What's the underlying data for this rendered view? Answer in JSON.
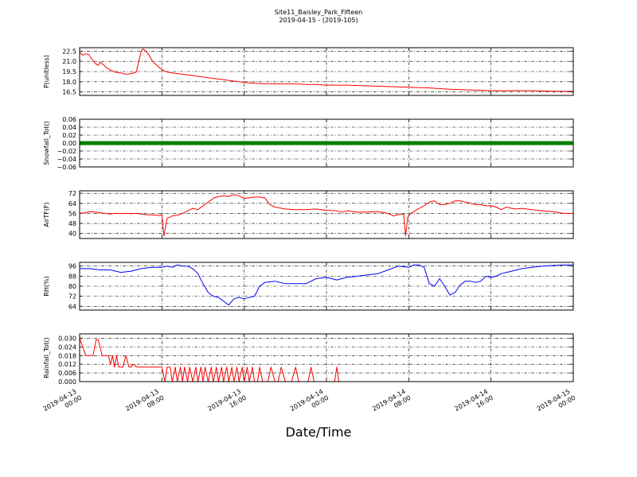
{
  "figure": {
    "title": "Site11_Baisley_Park_Fifteen",
    "subtitle": "2019-04-15 - (2019-105)",
    "xlabel": "Date/Time",
    "xticks": [
      {
        "h": 0,
        "l1": "2019-04-13",
        "l2": "00:00"
      },
      {
        "h": 8,
        "l1": "2019-04-13",
        "l2": "08:00"
      },
      {
        "h": 16,
        "l1": "2019-04-13",
        "l2": "16:00"
      },
      {
        "h": 24,
        "l1": "2019-04-14",
        "l2": "00:00"
      },
      {
        "h": 32,
        "l1": "2019-04-14",
        "l2": "08:00"
      },
      {
        "h": 40,
        "l1": "2019-04-14",
        "l2": "16:00"
      },
      {
        "h": 48,
        "l1": "2019-04-15",
        "l2": "00:00"
      }
    ]
  },
  "chart_data": [
    {
      "type": "line",
      "ylabel": "P(unitless)",
      "color": "#ff0000",
      "ylim": [
        16.0,
        23.0
      ],
      "yticks": [
        16.5,
        18.0,
        19.5,
        21.0,
        22.5
      ],
      "tick_labels": [
        "16.5",
        "18.0",
        "19.5",
        "21.0",
        "22.5"
      ],
      "x": [
        0,
        0.3,
        0.6,
        0.9,
        1.2,
        1.5,
        1.8,
        2.0,
        2.3,
        2.6,
        3.0,
        3.5,
        4.0,
        4.5,
        5.0,
        5.5,
        6.0,
        6.2,
        6.5,
        6.8,
        7.0,
        7.3,
        7.6,
        7.9,
        8.2,
        8.6,
        9.0,
        9.5,
        10,
        11,
        12,
        13,
        14,
        15,
        16,
        17,
        18,
        19,
        20,
        21,
        22,
        23,
        24,
        26,
        28,
        30,
        32,
        34,
        36,
        38,
        40,
        42,
        44,
        46,
        48
      ],
      "y": [
        22.3,
        21.9,
        22.1,
        22.0,
        21.3,
        20.7,
        20.4,
        20.9,
        20.5,
        20.1,
        19.7,
        19.4,
        19.3,
        19.1,
        19.2,
        19.4,
        22.6,
        22.8,
        22.4,
        21.8,
        21.2,
        20.7,
        20.3,
        19.9,
        19.6,
        19.4,
        19.3,
        19.2,
        19.1,
        18.9,
        18.7,
        18.5,
        18.3,
        18.1,
        17.9,
        17.8,
        17.7,
        17.7,
        17.7,
        17.7,
        17.6,
        17.6,
        17.5,
        17.5,
        17.4,
        17.3,
        17.2,
        17.1,
        16.9,
        16.8,
        16.7,
        16.7,
        16.7,
        16.6,
        16.6
      ]
    },
    {
      "type": "line",
      "ylabel": "Snowfall_Tot()",
      "color": "#008000",
      "ylim": [
        -0.06,
        0.06
      ],
      "yticks": [
        -0.06,
        -0.04,
        -0.02,
        0.0,
        0.02,
        0.04,
        0.06
      ],
      "tick_labels": [
        "−0.06",
        "−0.04",
        "−0.02",
        "0.00",
        "0.02",
        "0.04",
        "0.06"
      ],
      "x": [
        0,
        48
      ],
      "y": [
        0.0,
        0.0
      ]
    },
    {
      "type": "line",
      "ylabel": "AirTF(F)",
      "color": "#ff0000",
      "ylim": [
        36,
        74
      ],
      "yticks": [
        40,
        48,
        56,
        64,
        72
      ],
      "tick_labels": [
        "40",
        "48",
        "56",
        "64",
        "72"
      ],
      "x": [
        0,
        0.5,
        1,
        1.5,
        2,
        2.5,
        3,
        3.5,
        4,
        4.5,
        5,
        5.5,
        6,
        6.5,
        7,
        7.5,
        7.8,
        8.0,
        8.2,
        8.5,
        9,
        9.5,
        10,
        10.5,
        11,
        11.5,
        12,
        12.5,
        13,
        13.5,
        14,
        14.5,
        15,
        15.5,
        16,
        16.5,
        17,
        17.5,
        18,
        18.5,
        19,
        20,
        21,
        22,
        23,
        24,
        25,
        25.5,
        26,
        27,
        28,
        29,
        30,
        30.5,
        31,
        31.5,
        31.7,
        31.9,
        32.2,
        32.6,
        33,
        33.5,
        34,
        34.5,
        35,
        35.5,
        36,
        36.5,
        37,
        37.5,
        38,
        38.5,
        39,
        39.5,
        40,
        40.5,
        41,
        41.5,
        42,
        42.5,
        43,
        44,
        45,
        46,
        47,
        48
      ],
      "y": [
        56,
        56.5,
        57.5,
        57,
        56.5,
        56,
        55.5,
        56,
        55.8,
        56,
        55.7,
        56,
        55.5,
        55,
        54.8,
        54.5,
        54.3,
        55,
        38,
        52,
        54,
        54.5,
        56,
        58,
        60,
        59,
        62,
        65,
        68,
        69.5,
        70,
        69.5,
        71,
        70,
        68,
        68.5,
        69,
        69,
        68.5,
        63,
        61,
        59.5,
        59,
        59,
        59.5,
        58.5,
        58,
        57,
        58,
        57,
        57,
        57.5,
        56,
        54,
        55,
        55.5,
        38,
        53,
        56,
        58,
        60,
        62,
        65,
        66,
        63,
        63,
        64,
        66,
        66,
        65,
        64,
        63,
        63,
        62,
        62,
        61,
        59,
        61,
        60,
        59.5,
        60,
        59,
        58,
        57.5,
        56,
        56
      ]
    },
    {
      "type": "line",
      "ylabel": "RH(%)",
      "color": "#0000ff",
      "ylim": [
        61,
        99
      ],
      "yticks": [
        64,
        72,
        80,
        88,
        96
      ],
      "tick_labels": [
        "64",
        "72",
        "80",
        "88",
        "96"
      ],
      "x": [
        0,
        1,
        2,
        3,
        4,
        5,
        6,
        7,
        8,
        8.5,
        9,
        9.5,
        10,
        10.5,
        11,
        11.5,
        12,
        12.5,
        13,
        13.5,
        14,
        14.5,
        15,
        15.5,
        16,
        16.5,
        17,
        17.5,
        18,
        19,
        20,
        21,
        22,
        23,
        24,
        25,
        26,
        27,
        28,
        29,
        30,
        31,
        32,
        32.5,
        33,
        33.5,
        34,
        34.5,
        35,
        35.5,
        36,
        36.5,
        37,
        37.5,
        38,
        38.5,
        39,
        39.5,
        40,
        40.5,
        41,
        41.5,
        42,
        42.5,
        43,
        44,
        45,
        46,
        47,
        48
      ],
      "y": [
        94,
        94,
        93,
        93,
        91,
        92,
        94,
        95,
        95,
        96,
        95,
        97,
        96,
        96,
        94,
        90,
        82,
        75,
        72,
        71,
        68,
        65,
        70,
        71,
        70,
        71,
        72,
        80,
        83,
        84,
        82,
        82,
        82,
        86,
        87,
        85,
        87,
        88,
        89,
        90,
        93,
        96,
        95,
        97,
        97,
        95,
        82,
        80,
        86,
        80,
        73,
        75,
        81,
        84,
        84,
        83,
        84,
        88,
        87,
        88,
        90,
        91,
        92,
        93,
        94,
        95,
        96,
        96.5,
        97,
        97
      ]
    },
    {
      "type": "line",
      "ylabel": "Rainfall_Tot()",
      "color": "#ff0000",
      "ylim": [
        0,
        0.033
      ],
      "yticks": [
        0.0,
        0.006,
        0.012,
        0.018,
        0.024,
        0.03
      ],
      "tick_labels": [
        "0.000",
        "0.006",
        "0.012",
        "0.018",
        "0.024",
        "0.030"
      ],
      "x": [
        0,
        0.3,
        0.6,
        1.3,
        1.6,
        1.8,
        2.2,
        2.8,
        3.0,
        3.2,
        3.4,
        3.6,
        3.8,
        4.2,
        4.5,
        4.8,
        5.0,
        5.2,
        5.6,
        6.5,
        7.5,
        7.8,
        8.0,
        8.3,
        8.5,
        8.8,
        9.0,
        9.3,
        9.5,
        9.8,
        10.0,
        10.2,
        10.5,
        10.7,
        11.0,
        11.3,
        11.5,
        11.8,
        12.0,
        12.2,
        12.5,
        12.8,
        13.0,
        13.3,
        13.5,
        13.8,
        14.0,
        14.3,
        14.5,
        14.8,
        15.0,
        15.3,
        15.5,
        15.8,
        16.0,
        16.3,
        16.5,
        16.8,
        17.0,
        17.3,
        17.5,
        17.8,
        18.0,
        18.3,
        18.6,
        19.0,
        19.3,
        19.6,
        20.0,
        20.3,
        20.6,
        21.0,
        21.3,
        21.6,
        22.0,
        22.2,
        22.5,
        22.8,
        24.5,
        24.8,
        25.0,
        25.2,
        48
      ],
      "y": [
        0.03,
        0.024,
        0.018,
        0.018,
        0.029,
        0.029,
        0.018,
        0.018,
        0.012,
        0.018,
        0.01,
        0.018,
        0.01,
        0.01,
        0.018,
        0.01,
        0.01,
        0.012,
        0.01,
        0.01,
        0.01,
        0.01,
        0.01,
        0.0,
        0.01,
        0.01,
        0.0,
        0.01,
        0.0,
        0.01,
        0.0,
        0.01,
        0.0,
        0.01,
        0.0,
        0.01,
        0.0,
        0.01,
        0.0,
        0.01,
        0.0,
        0.01,
        0.0,
        0.01,
        0.0,
        0.01,
        0.0,
        0.01,
        0.0,
        0.01,
        0.0,
        0.01,
        0.0,
        0.01,
        0.0,
        0.01,
        0.0,
        0.01,
        0.0,
        0.0,
        0.01,
        0.0,
        0.0,
        0.0,
        0.01,
        0.0,
        0.0,
        0.01,
        0.0,
        0.0,
        0.0,
        0.01,
        0.0,
        0.0,
        0.0,
        0.0,
        0.01,
        0.0,
        0.0,
        0.0,
        0.01,
        0.0,
        0.0
      ]
    }
  ]
}
